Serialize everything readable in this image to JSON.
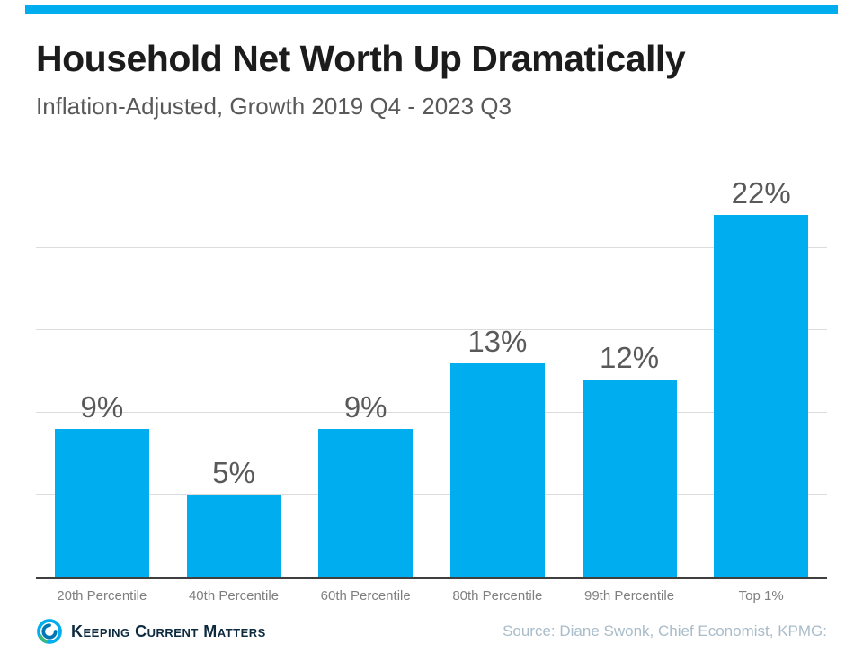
{
  "accent_color": "#00AEEF",
  "header": {
    "title": "Household Net Worth Up Dramatically",
    "subtitle": "Inflation-Adjusted, Growth 2019 Q4 - 2023 Q3"
  },
  "chart_data": {
    "type": "bar",
    "title": "Household Net Worth Up Dramatically",
    "subtitle": "Inflation-Adjusted, Growth 2019 Q4 - 2023 Q3",
    "categories": [
      "20th Percentile",
      "40th Percentile",
      "60th Percentile",
      "80th Percentile",
      "99th Percentile",
      "Top 1%"
    ],
    "values": [
      9,
      5,
      9,
      13,
      12,
      22
    ],
    "labels": [
      "9%",
      "5%",
      "9%",
      "13%",
      "12%",
      "22%"
    ],
    "xlabel": "",
    "ylabel": "",
    "ylim": [
      0,
      25
    ],
    "gridlines": [
      5,
      10,
      15,
      20,
      25
    ],
    "grid": true,
    "legend": "none",
    "bar_color": "#00AEEF",
    "gridline_color": "#dcdcdc",
    "value_label_color": "#595959",
    "axis_label_color": "#7f7f7f"
  },
  "footer": {
    "logo_text": "Keeping Current Matters",
    "source": "Source: Diane Swonk, Chief Economist, KPMG:"
  }
}
